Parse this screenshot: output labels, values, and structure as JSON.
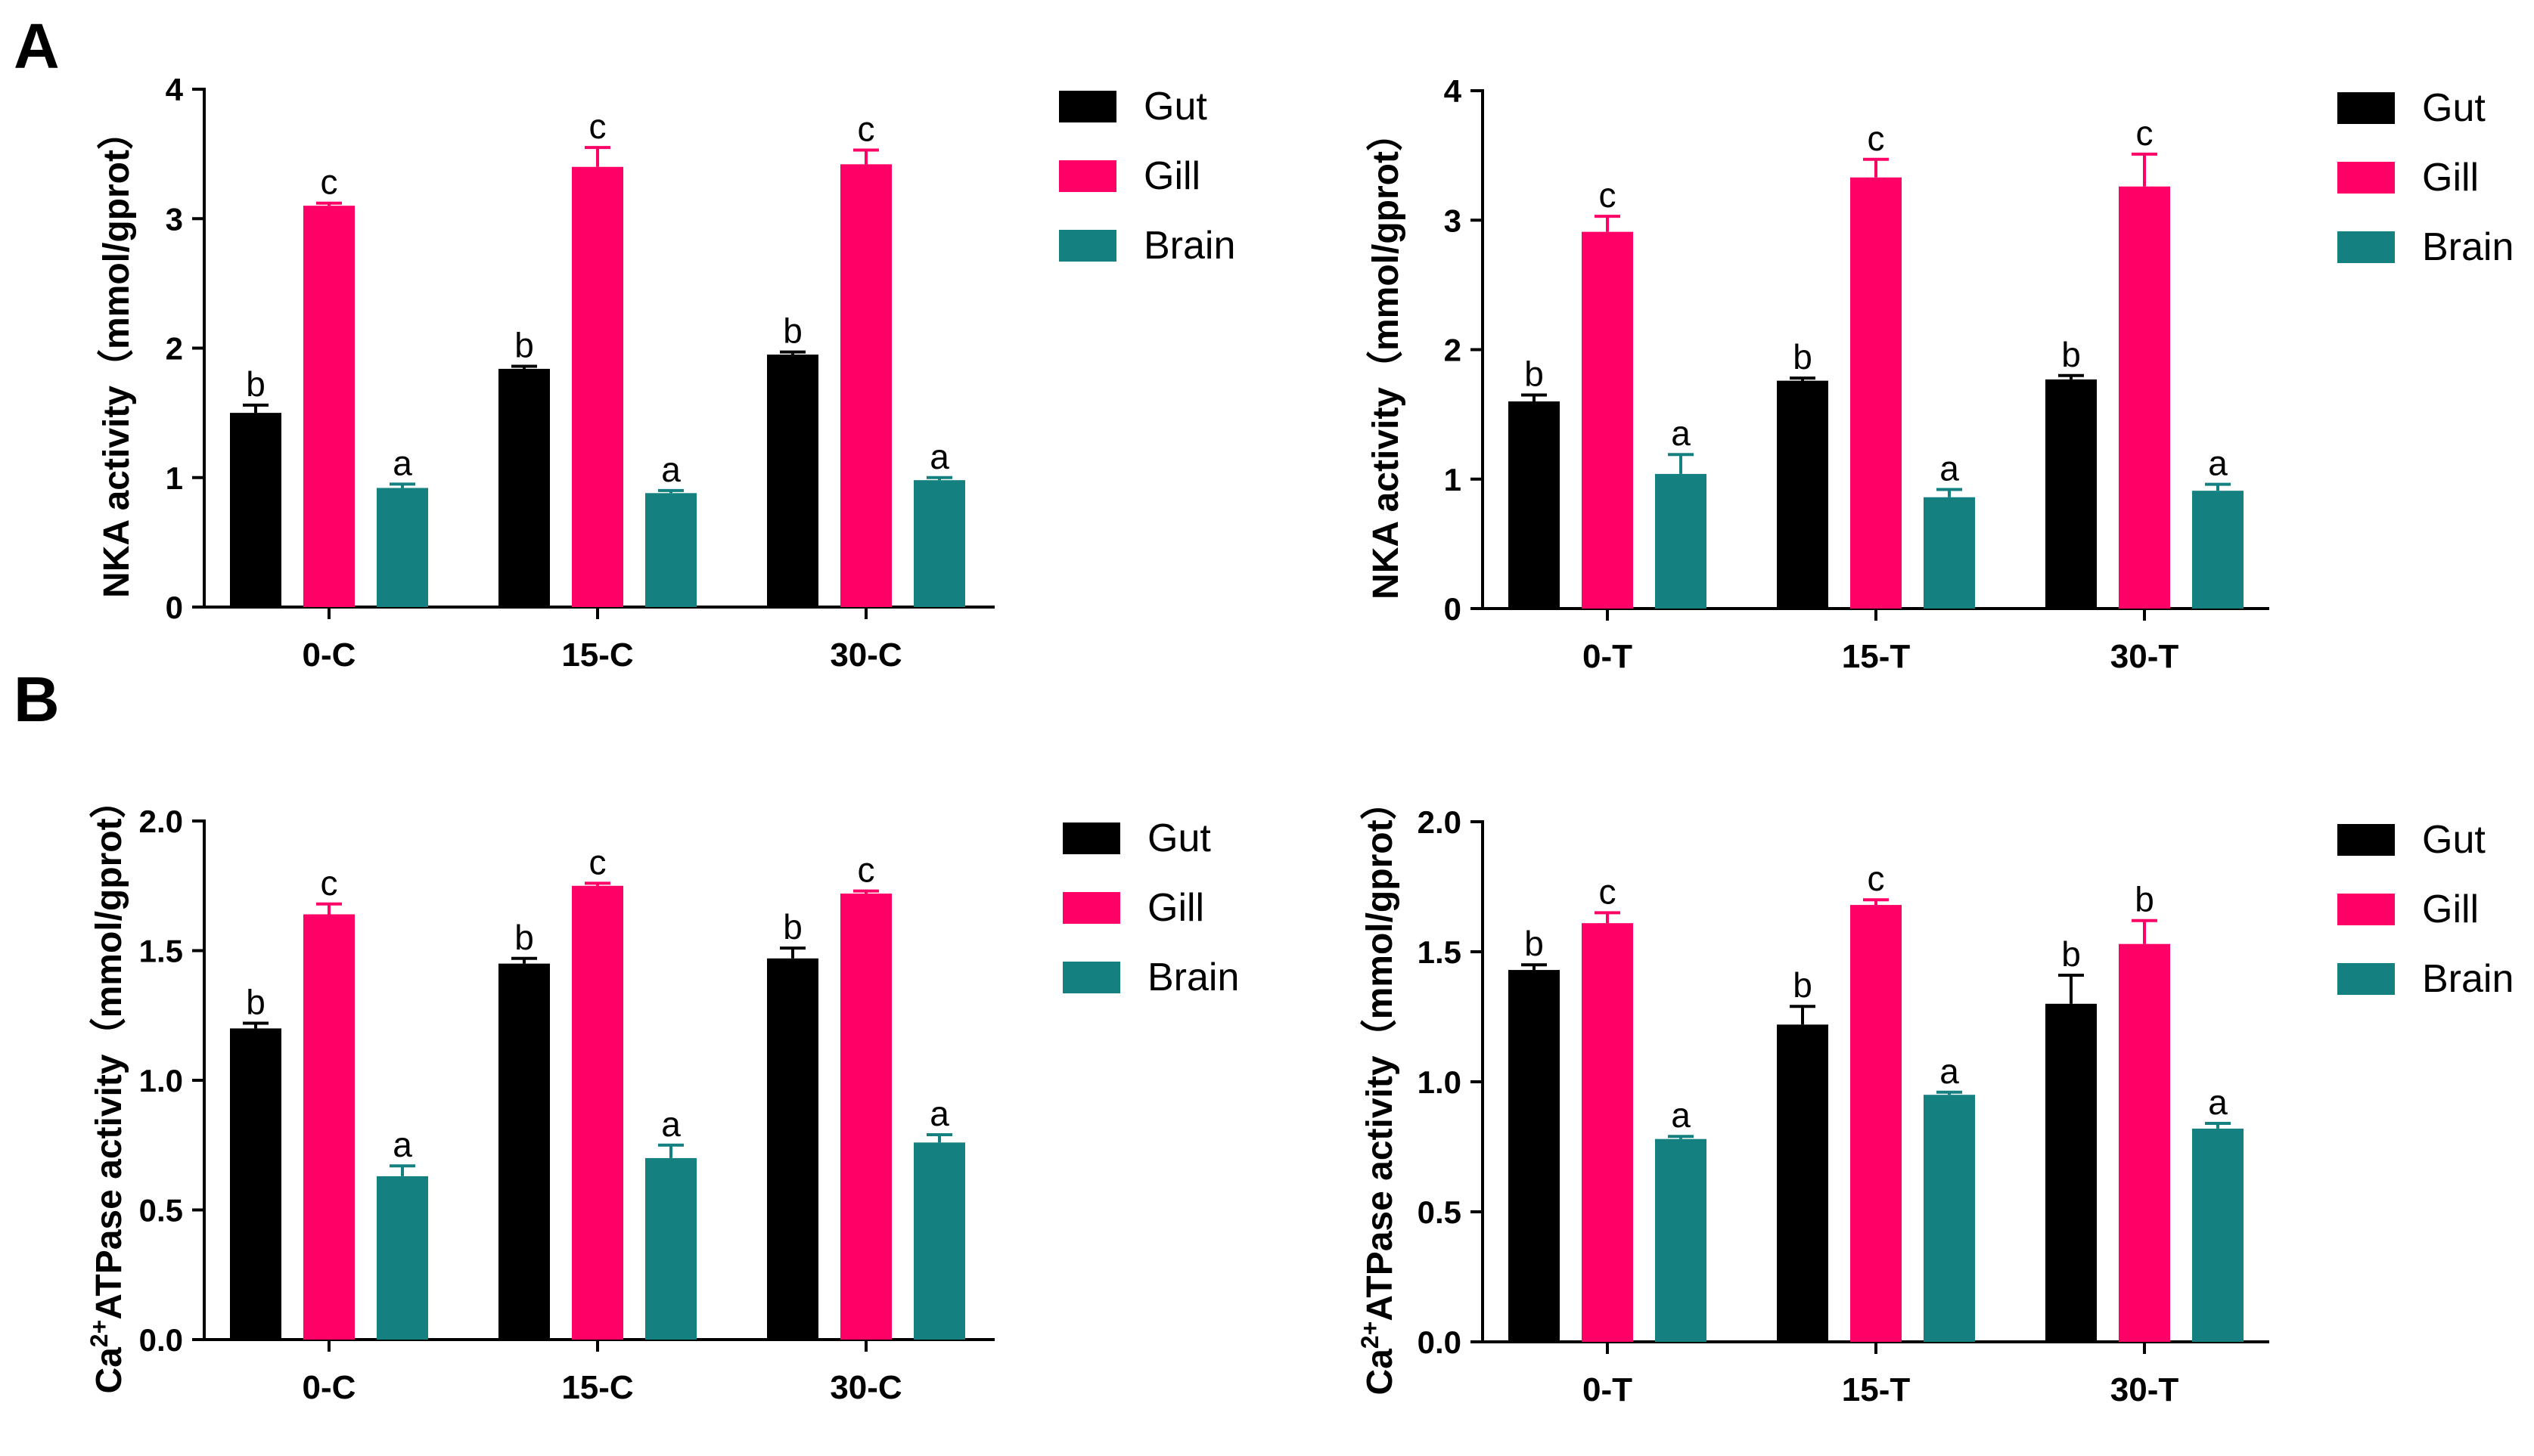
{
  "panel_letters": [
    "A",
    "B"
  ],
  "colors": {
    "Gut": "#000000",
    "Gill": "#ff0066",
    "Brain": "#148080",
    "axis": "#000000"
  },
  "chart_data": [
    {
      "type": "bar",
      "panel": "A",
      "categories": [
        "0-C",
        "15-C",
        "30-C"
      ],
      "series": [
        {
          "name": "Gut",
          "values": [
            1.5,
            1.84,
            1.95
          ],
          "errors": [
            0.06,
            0.02,
            0.02
          ],
          "labels": [
            "b",
            "b",
            "b"
          ]
        },
        {
          "name": "Gill",
          "values": [
            3.1,
            3.4,
            3.42
          ],
          "errors": [
            0.02,
            0.15,
            0.11
          ],
          "labels": [
            "c",
            "c",
            "c"
          ]
        },
        {
          "name": "Brain",
          "values": [
            0.92,
            0.88,
            0.98
          ],
          "errors": [
            0.03,
            0.02,
            0.02
          ],
          "labels": [
            "a",
            "a",
            "a"
          ]
        }
      ],
      "ylabel_prefix": "",
      "ylabel_main": "NKA activity（mmol/gprot）",
      "ylim": [
        0,
        4
      ],
      "yticks": [
        "0",
        "1",
        "2",
        "3",
        "4"
      ],
      "legend": [
        "Gut",
        "Gill",
        "Brain"
      ]
    },
    {
      "type": "bar",
      "panel": "",
      "categories": [
        "0-T",
        "15-T",
        "30-T"
      ],
      "series": [
        {
          "name": "Gut",
          "values": [
            1.6,
            1.76,
            1.77
          ],
          "errors": [
            0.05,
            0.02,
            0.03
          ],
          "labels": [
            "b",
            "b",
            "b"
          ]
        },
        {
          "name": "Gill",
          "values": [
            2.91,
            3.33,
            3.26
          ],
          "errors": [
            0.12,
            0.14,
            0.25
          ],
          "labels": [
            "c",
            "c",
            "c"
          ]
        },
        {
          "name": "Brain",
          "values": [
            1.04,
            0.86,
            0.91
          ],
          "errors": [
            0.15,
            0.06,
            0.05
          ],
          "labels": [
            "a",
            "a",
            "a"
          ]
        }
      ],
      "ylabel_prefix": "",
      "ylabel_main": "NKA activity（mmol/gprot）",
      "ylim": [
        0,
        4
      ],
      "yticks": [
        "0",
        "1",
        "2",
        "3",
        "4"
      ],
      "legend": [
        "Gut",
        "Gill",
        "Brain"
      ]
    },
    {
      "type": "bar",
      "panel": "B",
      "categories": [
        "0-C",
        "15-C",
        "30-C"
      ],
      "series": [
        {
          "name": "Gut",
          "values": [
            1.2,
            1.45,
            1.47
          ],
          "errors": [
            0.02,
            0.02,
            0.04
          ],
          "labels": [
            "b",
            "b",
            "b"
          ]
        },
        {
          "name": "Gill",
          "values": [
            1.64,
            1.75,
            1.72
          ],
          "errors": [
            0.04,
            0.01,
            0.01
          ],
          "labels": [
            "c",
            "c",
            "c"
          ]
        },
        {
          "name": "Brain",
          "values": [
            0.63,
            0.7,
            0.76
          ],
          "errors": [
            0.04,
            0.05,
            0.03
          ],
          "labels": [
            "a",
            "a",
            "a"
          ]
        }
      ],
      "ylabel_prefix": "Ca",
      "ylabel_sup": "2+",
      "ylabel_main": "ATPase activity（mmol/gprot）",
      "ylim": [
        0,
        2
      ],
      "yticks": [
        "0.0",
        "0.5",
        "1.0",
        "1.5",
        "2.0"
      ],
      "legend": [
        "Gut",
        "Gill",
        "Brain"
      ]
    },
    {
      "type": "bar",
      "panel": "",
      "categories": [
        "0-T",
        "15-T",
        "30-T"
      ],
      "series": [
        {
          "name": "Gut",
          "values": [
            1.43,
            1.22,
            1.3
          ],
          "errors": [
            0.02,
            0.07,
            0.11
          ],
          "labels": [
            "b",
            "b",
            "b"
          ]
        },
        {
          "name": "Gill",
          "values": [
            1.61,
            1.68,
            1.53
          ],
          "errors": [
            0.04,
            0.02,
            0.09
          ],
          "labels": [
            "c",
            "c",
            "b"
          ]
        },
        {
          "name": "Brain",
          "values": [
            0.78,
            0.95,
            0.82
          ],
          "errors": [
            0.01,
            0.01,
            0.02
          ],
          "labels": [
            "a",
            "a",
            "a"
          ]
        }
      ],
      "ylabel_prefix": "Ca",
      "ylabel_sup": "2+",
      "ylabel_main": "ATPase activity（mmol/gprot）",
      "ylim": [
        0,
        2
      ],
      "yticks": [
        "0.0",
        "0.5",
        "1.0",
        "1.5",
        "2.0"
      ],
      "legend": [
        "Gut",
        "Gill",
        "Brain"
      ]
    }
  ]
}
